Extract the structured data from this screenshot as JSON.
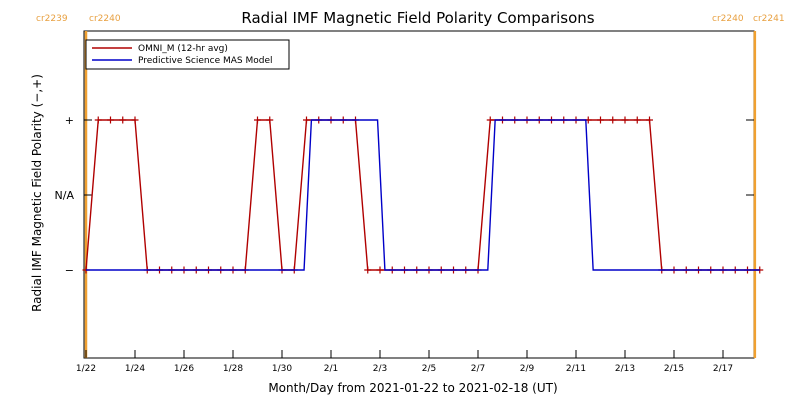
{
  "chart_data": {
    "type": "line",
    "title": "Radial IMF Magnetic Field Polarity Comparisons",
    "xlabel": "Month/Day from 2021-01-22 to 2021-02-18 (UT)",
    "ylabel": "Radial IMF Magnetic Field Polarity (−,+)",
    "x_start_date": "2021-01-22",
    "xlim_days": [
      0,
      27.5
    ],
    "ylim": [
      -1.5,
      1.5
    ],
    "y_ticks": [
      {
        "value": 1,
        "label": "+"
      },
      {
        "value": 0,
        "label": "N/A"
      },
      {
        "value": -1,
        "label": "−"
      }
    ],
    "x_ticks": [
      {
        "day": 0,
        "label": "1/22"
      },
      {
        "day": 2,
        "label": "1/24"
      },
      {
        "day": 4,
        "label": "1/26"
      },
      {
        "day": 6,
        "label": "1/28"
      },
      {
        "day": 8,
        "label": "1/30"
      },
      {
        "day": 10,
        "label": "2/1"
      },
      {
        "day": 12,
        "label": "2/3"
      },
      {
        "day": 14,
        "label": "2/5"
      },
      {
        "day": 16,
        "label": "2/7"
      },
      {
        "day": 18,
        "label": "2/9"
      },
      {
        "day": 20,
        "label": "2/11"
      },
      {
        "day": 22,
        "label": "2/13"
      },
      {
        "day": 24,
        "label": "2/15"
      },
      {
        "day": 26,
        "label": "2/17"
      }
    ],
    "carrington_markers": [
      {
        "day": 0.0,
        "left_label": "cr2239",
        "right_label": "cr2240"
      },
      {
        "day": 27.3,
        "left_label": "cr2240",
        "right_label": "cr2241"
      }
    ],
    "series": [
      {
        "name": "OMNI_M (12-hr avg)",
        "color": "#b00000",
        "markers": true,
        "x": [
          0,
          0.5,
          1,
          1.5,
          2,
          2.5,
          3,
          3.5,
          4,
          4.5,
          5,
          5.5,
          6,
          6.5,
          7,
          7.5,
          8,
          8.5,
          9,
          9.5,
          10,
          10.5,
          11,
          11.5,
          12,
          12.5,
          13,
          13.5,
          14,
          14.5,
          15,
          15.5,
          16,
          16.5,
          17,
          17.5,
          18,
          18.5,
          19,
          19.5,
          20,
          20.5,
          21,
          21.5,
          22,
          22.5,
          23,
          23.5,
          24,
          24.5,
          25,
          25.5,
          26,
          26.5,
          27,
          27.5
        ],
        "y": [
          -1,
          1,
          1,
          1,
          1,
          -1,
          -1,
          -1,
          -1,
          -1,
          -1,
          -1,
          -1,
          -1,
          1,
          1,
          -1,
          -1,
          1,
          1,
          1,
          1,
          1,
          -1,
          -1,
          -1,
          -1,
          -1,
          -1,
          -1,
          -1,
          -1,
          -1,
          1,
          1,
          1,
          1,
          1,
          1,
          1,
          1,
          1,
          1,
          1,
          1,
          1,
          1,
          -1,
          -1,
          -1,
          -1,
          -1,
          -1,
          -1,
          -1,
          -1
        ]
      },
      {
        "name": "Predictive Science MAS Model",
        "color": "#0000c8",
        "markers": false,
        "x": [
          0,
          8.9,
          9.2,
          11.9,
          12.2,
          16.4,
          16.7,
          20.4,
          20.7,
          27.5
        ],
        "y": [
          -1,
          -1,
          1,
          1,
          -1,
          -1,
          1,
          1,
          -1,
          -1
        ]
      }
    ],
    "legend_position": "top-left",
    "grid": false
  }
}
